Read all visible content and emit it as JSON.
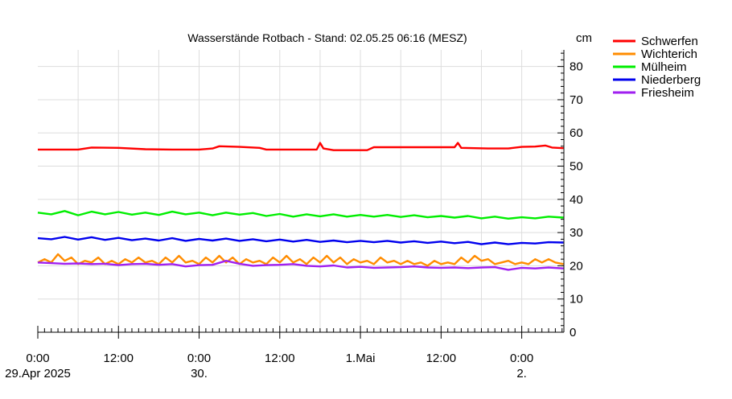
{
  "chart_data": {
    "type": "line",
    "title": "Wasserstände Rotbach - Stand: 02.05.25 06:16 (MESZ)",
    "ylabel": "cm",
    "ylim": [
      0,
      85
    ],
    "yticks": [
      0,
      10,
      20,
      30,
      40,
      50,
      60,
      70,
      80
    ],
    "xlim_hours": [
      0,
      78.27
    ],
    "grid": true,
    "legend_position": "top-right",
    "x_ticks": [
      {
        "hour": 0,
        "line1": "0:00",
        "line2": "29.Apr 2025"
      },
      {
        "hour": 12,
        "line1": "12:00",
        "line2": ""
      },
      {
        "hour": 24,
        "line1": "0:00",
        "line2": "30."
      },
      {
        "hour": 36,
        "line1": "12:00",
        "line2": ""
      },
      {
        "hour": 48,
        "line1": "1.Mai",
        "line2": ""
      },
      {
        "hour": 60,
        "line1": "12:00",
        "line2": ""
      },
      {
        "hour": 72,
        "line1": "0:00",
        "line2": "2."
      }
    ],
    "series": [
      {
        "name": "Schwerfen",
        "color": "#ff0000",
        "points": [
          [
            0,
            55.0
          ],
          [
            6,
            55.0
          ],
          [
            8,
            55.6
          ],
          [
            12,
            55.5
          ],
          [
            16,
            55.1
          ],
          [
            20,
            55.0
          ],
          [
            24,
            55.0
          ],
          [
            26,
            55.3
          ],
          [
            27,
            56.0
          ],
          [
            30,
            55.8
          ],
          [
            33,
            55.5
          ],
          [
            34,
            55.0
          ],
          [
            40,
            55.0
          ],
          [
            41.5,
            55.0
          ],
          [
            42,
            57.0
          ],
          [
            42.5,
            55.3
          ],
          [
            44,
            54.8
          ],
          [
            49,
            54.8
          ],
          [
            50,
            55.7
          ],
          [
            55,
            55.7
          ],
          [
            62,
            55.7
          ],
          [
            62.5,
            57.0
          ],
          [
            63,
            55.5
          ],
          [
            67,
            55.3
          ],
          [
            70,
            55.3
          ],
          [
            72,
            55.8
          ],
          [
            74,
            55.9
          ],
          [
            75.5,
            56.2
          ],
          [
            76.5,
            55.6
          ],
          [
            78.2,
            55.4
          ]
        ]
      },
      {
        "name": "Wichterich",
        "color": "#ff8c00",
        "points": [
          [
            0,
            21.0
          ],
          [
            1,
            22.0
          ],
          [
            2,
            21.0
          ],
          [
            3,
            23.5
          ],
          [
            4,
            21.5
          ],
          [
            5,
            22.5
          ],
          [
            6,
            20.5
          ],
          [
            7,
            21.5
          ],
          [
            8,
            21.0
          ],
          [
            9,
            22.5
          ],
          [
            10,
            20.5
          ],
          [
            11,
            21.5
          ],
          [
            12,
            20.5
          ],
          [
            13,
            22.0
          ],
          [
            14,
            21.0
          ],
          [
            15,
            22.5
          ],
          [
            16,
            21.0
          ],
          [
            17,
            21.5
          ],
          [
            18,
            20.5
          ],
          [
            19,
            22.5
          ],
          [
            20,
            21.0
          ],
          [
            21,
            23.0
          ],
          [
            22,
            21.0
          ],
          [
            23,
            21.5
          ],
          [
            24,
            20.5
          ],
          [
            25,
            22.5
          ],
          [
            26,
            21.0
          ],
          [
            27,
            23.0
          ],
          [
            28,
            21.0
          ],
          [
            29,
            22.5
          ],
          [
            30,
            20.5
          ],
          [
            31,
            22.0
          ],
          [
            32,
            21.0
          ],
          [
            33,
            21.5
          ],
          [
            34,
            20.5
          ],
          [
            35,
            22.5
          ],
          [
            36,
            21.0
          ],
          [
            37,
            23.0
          ],
          [
            38,
            21.0
          ],
          [
            39,
            22.0
          ],
          [
            40,
            20.5
          ],
          [
            41,
            22.5
          ],
          [
            42,
            21.0
          ],
          [
            43,
            23.0
          ],
          [
            44,
            21.0
          ],
          [
            45,
            22.5
          ],
          [
            46,
            20.5
          ],
          [
            47,
            22.0
          ],
          [
            48,
            21.0
          ],
          [
            49,
            21.5
          ],
          [
            50,
            20.5
          ],
          [
            51,
            22.5
          ],
          [
            52,
            21.0
          ],
          [
            53,
            21.5
          ],
          [
            54,
            20.5
          ],
          [
            55,
            21.5
          ],
          [
            56,
            20.5
          ],
          [
            57,
            21.0
          ],
          [
            58,
            20.0
          ],
          [
            59,
            21.5
          ],
          [
            60,
            20.5
          ],
          [
            61,
            21.0
          ],
          [
            62,
            20.5
          ],
          [
            63,
            22.5
          ],
          [
            64,
            21.0
          ],
          [
            65,
            23.0
          ],
          [
            66,
            21.5
          ],
          [
            67,
            22.0
          ],
          [
            68,
            20.5
          ],
          [
            69,
            21.0
          ],
          [
            70,
            21.5
          ],
          [
            71,
            20.5
          ],
          [
            72,
            21.0
          ],
          [
            73,
            20.5
          ],
          [
            74,
            22.0
          ],
          [
            75,
            21.0
          ],
          [
            76,
            22.0
          ],
          [
            77,
            21.0
          ],
          [
            78.2,
            20.5
          ]
        ]
      },
      {
        "name": "Mülheim",
        "color": "#00ee00",
        "points": [
          [
            0,
            36.0
          ],
          [
            2,
            35.5
          ],
          [
            4,
            36.5
          ],
          [
            6,
            35.2
          ],
          [
            8,
            36.3
          ],
          [
            10,
            35.5
          ],
          [
            12,
            36.2
          ],
          [
            14,
            35.4
          ],
          [
            16,
            36.0
          ],
          [
            18,
            35.3
          ],
          [
            20,
            36.3
          ],
          [
            22,
            35.5
          ],
          [
            24,
            36.0
          ],
          [
            26,
            35.2
          ],
          [
            28,
            36.0
          ],
          [
            30,
            35.4
          ],
          [
            32,
            35.9
          ],
          [
            34,
            35.0
          ],
          [
            36,
            35.6
          ],
          [
            38,
            34.8
          ],
          [
            40,
            35.5
          ],
          [
            42,
            34.9
          ],
          [
            44,
            35.5
          ],
          [
            46,
            34.8
          ],
          [
            48,
            35.3
          ],
          [
            50,
            34.8
          ],
          [
            52,
            35.3
          ],
          [
            54,
            34.7
          ],
          [
            56,
            35.2
          ],
          [
            58,
            34.6
          ],
          [
            60,
            35.0
          ],
          [
            62,
            34.5
          ],
          [
            64,
            35.0
          ],
          [
            66,
            34.3
          ],
          [
            68,
            34.8
          ],
          [
            70,
            34.2
          ],
          [
            72,
            34.6
          ],
          [
            74,
            34.3
          ],
          [
            76,
            34.8
          ],
          [
            78.2,
            34.5
          ]
        ]
      },
      {
        "name": "Niederberg",
        "color": "#0000ee",
        "points": [
          [
            0,
            28.3
          ],
          [
            2,
            28.0
          ],
          [
            4,
            28.7
          ],
          [
            6,
            27.9
          ],
          [
            8,
            28.6
          ],
          [
            10,
            27.8
          ],
          [
            12,
            28.4
          ],
          [
            14,
            27.7
          ],
          [
            16,
            28.2
          ],
          [
            18,
            27.6
          ],
          [
            20,
            28.3
          ],
          [
            22,
            27.5
          ],
          [
            24,
            28.1
          ],
          [
            26,
            27.6
          ],
          [
            28,
            28.2
          ],
          [
            30,
            27.5
          ],
          [
            32,
            28.0
          ],
          [
            34,
            27.4
          ],
          [
            36,
            27.9
          ],
          [
            38,
            27.3
          ],
          [
            40,
            27.8
          ],
          [
            42,
            27.2
          ],
          [
            44,
            27.6
          ],
          [
            46,
            27.1
          ],
          [
            48,
            27.5
          ],
          [
            50,
            27.1
          ],
          [
            52,
            27.5
          ],
          [
            54,
            27.0
          ],
          [
            56,
            27.4
          ],
          [
            58,
            26.9
          ],
          [
            60,
            27.3
          ],
          [
            62,
            26.8
          ],
          [
            64,
            27.2
          ],
          [
            66,
            26.5
          ],
          [
            68,
            27.0
          ],
          [
            70,
            26.5
          ],
          [
            72,
            26.9
          ],
          [
            74,
            26.7
          ],
          [
            76,
            27.1
          ],
          [
            78.2,
            27.0
          ]
        ]
      },
      {
        "name": "Friesheim",
        "color": "#a020f0",
        "points": [
          [
            0,
            21.0
          ],
          [
            2,
            20.8
          ],
          [
            4,
            20.6
          ],
          [
            6,
            20.7
          ],
          [
            8,
            20.5
          ],
          [
            10,
            20.6
          ],
          [
            12,
            20.2
          ],
          [
            14,
            20.5
          ],
          [
            16,
            20.6
          ],
          [
            18,
            20.3
          ],
          [
            20,
            20.5
          ],
          [
            22,
            19.8
          ],
          [
            24,
            20.2
          ],
          [
            26,
            20.3
          ],
          [
            28,
            21.5
          ],
          [
            30,
            20.6
          ],
          [
            32,
            20.0
          ],
          [
            34,
            20.2
          ],
          [
            36,
            20.3
          ],
          [
            38,
            20.5
          ],
          [
            40,
            20.0
          ],
          [
            42,
            19.8
          ],
          [
            44,
            20.1
          ],
          [
            46,
            19.5
          ],
          [
            48,
            19.7
          ],
          [
            50,
            19.4
          ],
          [
            52,
            19.5
          ],
          [
            54,
            19.6
          ],
          [
            56,
            19.8
          ],
          [
            58,
            19.5
          ],
          [
            60,
            19.4
          ],
          [
            62,
            19.5
          ],
          [
            64,
            19.3
          ],
          [
            66,
            19.5
          ],
          [
            68,
            19.6
          ],
          [
            70,
            18.8
          ],
          [
            72,
            19.4
          ],
          [
            74,
            19.2
          ],
          [
            76,
            19.5
          ],
          [
            78.2,
            19.2
          ]
        ]
      }
    ]
  }
}
